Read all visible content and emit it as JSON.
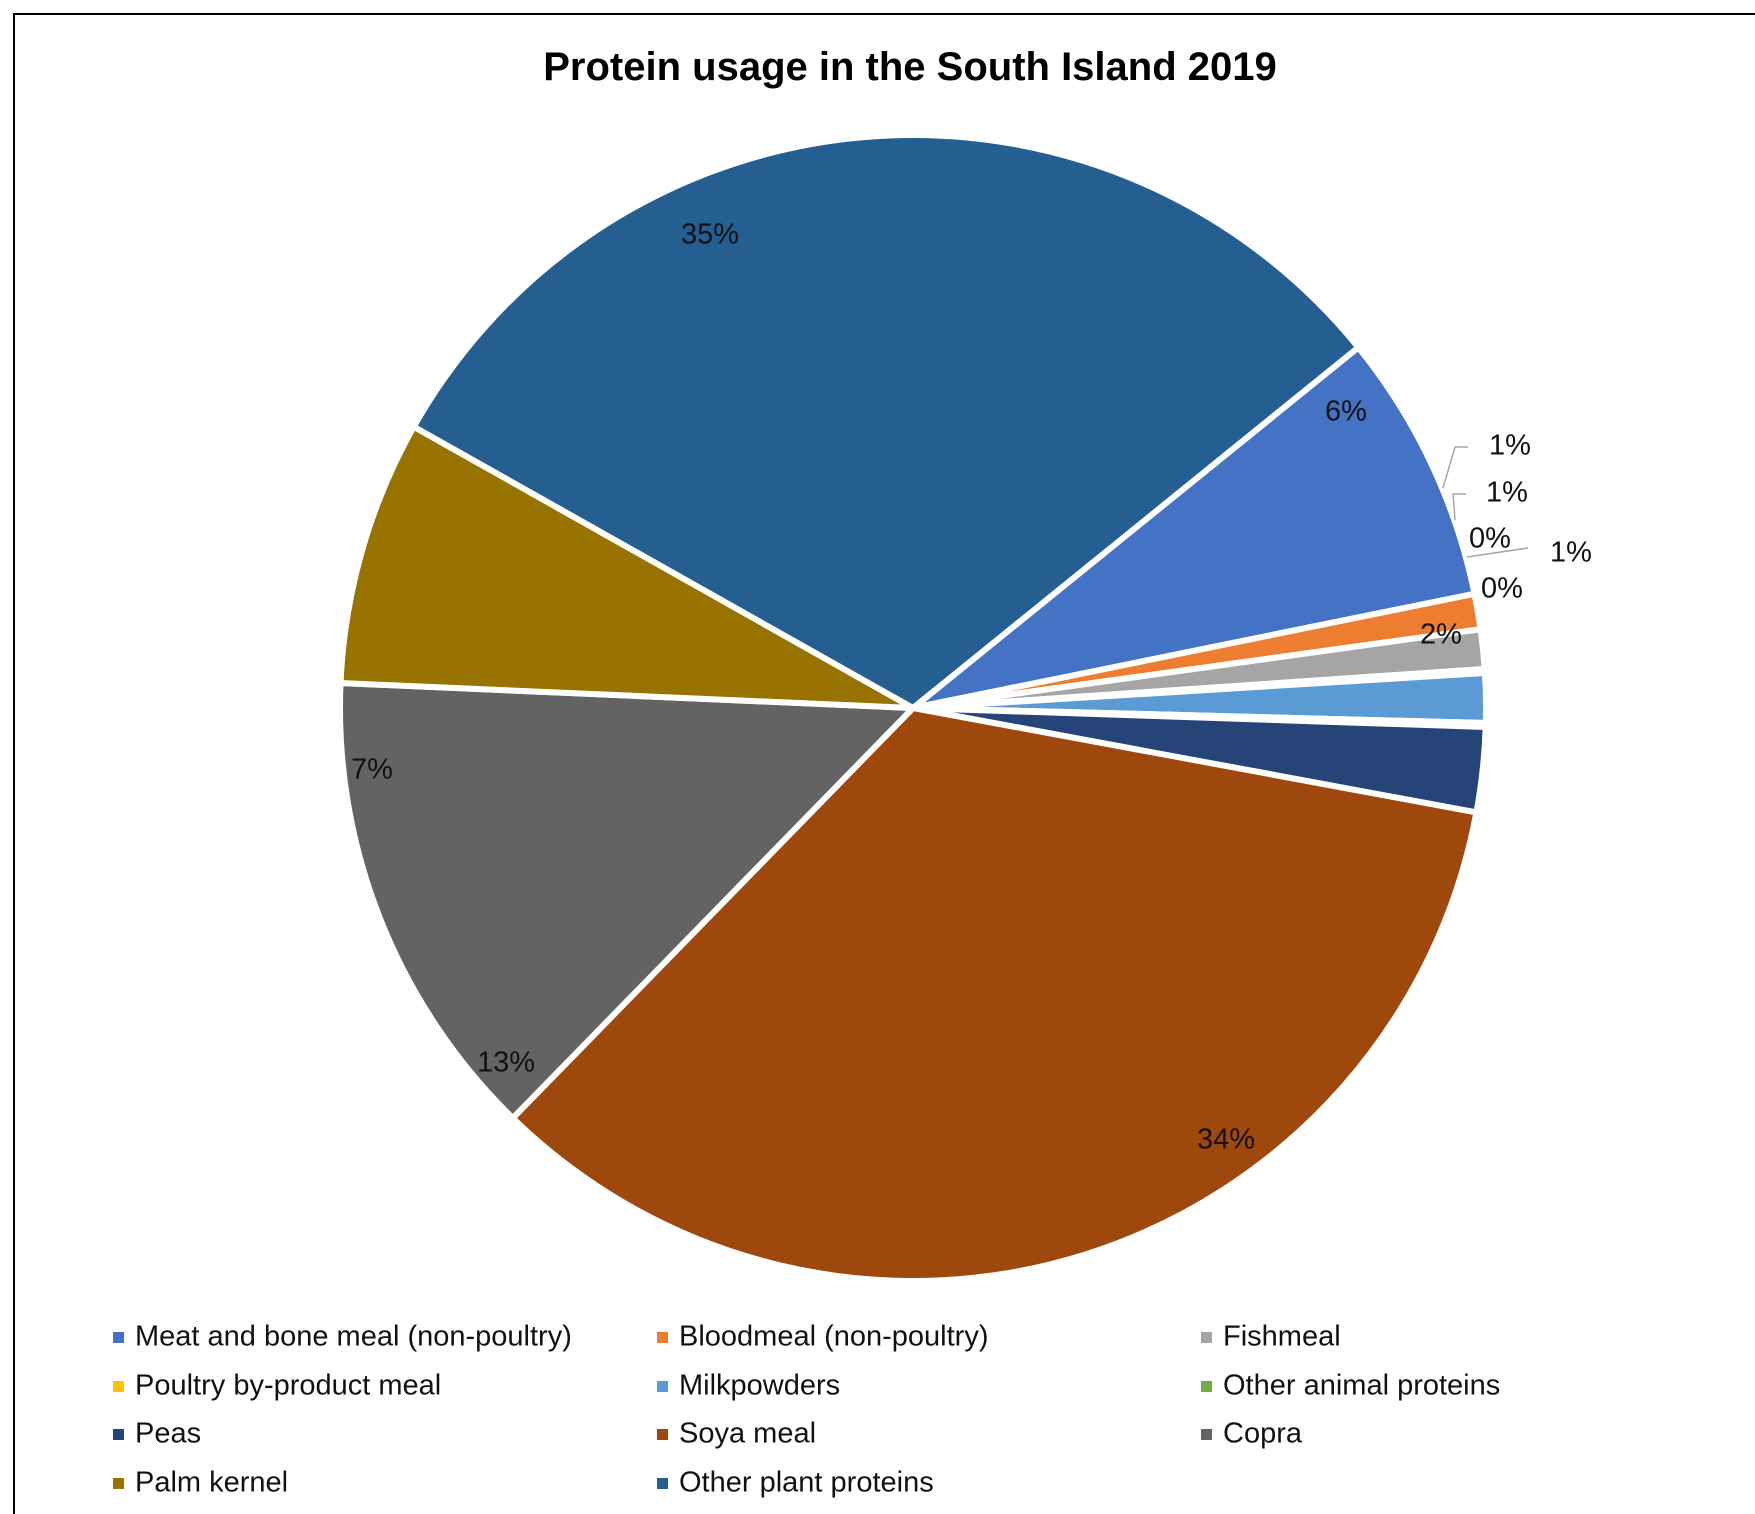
{
  "chart_data": {
    "type": "pie",
    "title": "Protein usage in the South Island 2019",
    "series": [
      {
        "name": "Meat and bone meal (non-poultry)",
        "value": 6,
        "label": "6%",
        "color": "#4472C4"
      },
      {
        "name": "Bloodmeal (non-poultry)",
        "value": 1,
        "label": "1%",
        "color": "#ED7D31"
      },
      {
        "name": "Fishmeal",
        "value": 1,
        "label": "1%",
        "color": "#A5A5A5"
      },
      {
        "name": "Poultry by-product meal",
        "value": 0,
        "label": "0%",
        "color": "#FFC000"
      },
      {
        "name": "Milkpowders",
        "value": 1,
        "label": "1%",
        "color": "#5B9BD5"
      },
      {
        "name": "Other animal proteins",
        "value": 0,
        "label": "0%",
        "color": "#70AD47"
      },
      {
        "name": "Peas",
        "value": 2,
        "label": "2%",
        "color": "#264478"
      },
      {
        "name": "Soya meal",
        "value": 34,
        "label": "34%",
        "color": "#9E480E"
      },
      {
        "name": "Copra",
        "value": 13,
        "label": "13%",
        "color": "#636363"
      },
      {
        "name": "Palm kernel",
        "value": 7,
        "label": "7%",
        "color": "#997300"
      },
      {
        "name": "Other plant proteins",
        "value": 35,
        "label": "35%",
        "color": "#255E91"
      }
    ],
    "legend_position": "bottom"
  }
}
